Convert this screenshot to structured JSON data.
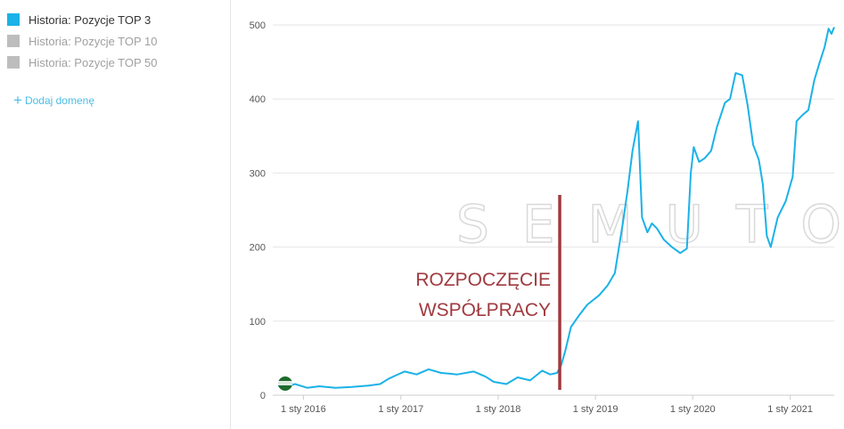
{
  "legend": [
    {
      "label": "Historia: Pozycje TOP 3",
      "color": "#1ab2e8",
      "active": true
    },
    {
      "label": "Historia: Pozycje TOP 10",
      "color": "#bdbdbd",
      "active": false
    },
    {
      "label": "Historia: Pozycje TOP 50",
      "color": "#bdbdbd",
      "active": false
    }
  ],
  "add_domain": {
    "icon": "plus-icon",
    "label": "Dodaj domenę"
  },
  "watermark": "SEMUTO",
  "chart_data": {
    "type": "line",
    "title": "",
    "xlabel": "",
    "ylabel": "",
    "ylim": [
      0,
      500
    ],
    "xlim": [
      "2015-09-28",
      "2021-06-15"
    ],
    "y_ticks": [
      0,
      100,
      200,
      300,
      400,
      500
    ],
    "x_ticks": [
      {
        "date": "2016-01-01",
        "label": "1 sty 2016"
      },
      {
        "date": "2017-01-01",
        "label": "1 sty 2017"
      },
      {
        "date": "2018-01-01",
        "label": "1 sty 2018"
      },
      {
        "date": "2019-01-01",
        "label": "1 sty 2019"
      },
      {
        "date": "2020-01-01",
        "label": "1 sty 2020"
      },
      {
        "date": "2021-01-01",
        "label": "1 sty 2021"
      }
    ],
    "grid": true,
    "series": [
      {
        "name": "Historia: Pozycje TOP 3",
        "color": "#1ab2e8",
        "points": [
          [
            "2015-09-28",
            13
          ],
          [
            "2015-11-01",
            12
          ],
          [
            "2015-12-01",
            15
          ],
          [
            "2016-01-15",
            10
          ],
          [
            "2016-03-01",
            12
          ],
          [
            "2016-05-01",
            10
          ],
          [
            "2016-07-01",
            11
          ],
          [
            "2016-09-01",
            13
          ],
          [
            "2016-10-15",
            15
          ],
          [
            "2016-11-15",
            22
          ],
          [
            "2016-12-15",
            27
          ],
          [
            "2017-01-15",
            32
          ],
          [
            "2017-03-01",
            28
          ],
          [
            "2017-04-15",
            35
          ],
          [
            "2017-06-01",
            30
          ],
          [
            "2017-08-01",
            28
          ],
          [
            "2017-10-01",
            32
          ],
          [
            "2017-11-15",
            25
          ],
          [
            "2017-12-15",
            18
          ],
          [
            "2018-02-01",
            15
          ],
          [
            "2018-03-15",
            24
          ],
          [
            "2018-05-01",
            20
          ],
          [
            "2018-06-15",
            33
          ],
          [
            "2018-07-15",
            28
          ],
          [
            "2018-08-10",
            30
          ],
          [
            "2018-08-25",
            40
          ],
          [
            "2018-09-10",
            60
          ],
          [
            "2018-10-01",
            92
          ],
          [
            "2018-11-01",
            108
          ],
          [
            "2018-12-01",
            122
          ],
          [
            "2019-01-15",
            135
          ],
          [
            "2019-02-15",
            148
          ],
          [
            "2019-03-15",
            165
          ],
          [
            "2019-04-15",
            235
          ],
          [
            "2019-05-01",
            275
          ],
          [
            "2019-05-20",
            330
          ],
          [
            "2019-06-10",
            370
          ],
          [
            "2019-06-25",
            240
          ],
          [
            "2019-07-15",
            220
          ],
          [
            "2019-08-01",
            232
          ],
          [
            "2019-08-20",
            225
          ],
          [
            "2019-09-15",
            210
          ],
          [
            "2019-10-15",
            200
          ],
          [
            "2019-11-15",
            192
          ],
          [
            "2019-12-10",
            198
          ],
          [
            "2019-12-25",
            300
          ],
          [
            "2020-01-05",
            335
          ],
          [
            "2020-01-25",
            315
          ],
          [
            "2020-02-15",
            320
          ],
          [
            "2020-03-10",
            330
          ],
          [
            "2020-04-01",
            362
          ],
          [
            "2020-05-01",
            395
          ],
          [
            "2020-05-20",
            400
          ],
          [
            "2020-06-10",
            435
          ],
          [
            "2020-07-05",
            432
          ],
          [
            "2020-07-25",
            392
          ],
          [
            "2020-08-15",
            338
          ],
          [
            "2020-09-05",
            318
          ],
          [
            "2020-09-20",
            285
          ],
          [
            "2020-10-05",
            215
          ],
          [
            "2020-10-20",
            200
          ],
          [
            "2020-11-15",
            240
          ],
          [
            "2020-12-15",
            262
          ],
          [
            "2021-01-10",
            295
          ],
          [
            "2021-01-25",
            370
          ],
          [
            "2021-02-15",
            378
          ],
          [
            "2021-03-10",
            385
          ],
          [
            "2021-04-01",
            425
          ],
          [
            "2021-04-20",
            448
          ],
          [
            "2021-05-10",
            470
          ],
          [
            "2021-05-25",
            495
          ],
          [
            "2021-06-05",
            488
          ],
          [
            "2021-06-15",
            497
          ]
        ]
      }
    ],
    "annotations": [
      {
        "type": "vline",
        "date": "2018-08-20",
        "color": "#a03a3f",
        "label_lines": [
          "ROZPOCZĘCIE",
          "WSPÓŁPRACY"
        ]
      }
    ]
  }
}
